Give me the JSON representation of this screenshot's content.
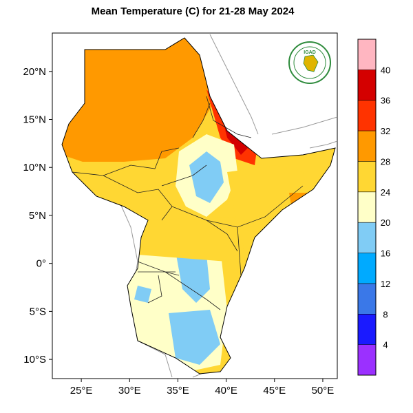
{
  "title": "Mean Temperature (C) for 21-28 May 2024",
  "logo": {
    "text": "IGAD",
    "icon": "igad-logo"
  },
  "map": {
    "lon_range": [
      22,
      51.5
    ],
    "lat_range": [
      -12,
      24
    ],
    "lon_ticks": [
      {
        "value": 25,
        "label": "25°E"
      },
      {
        "value": 30,
        "label": "30°E"
      },
      {
        "value": 35,
        "label": "35°E"
      },
      {
        "value": 40,
        "label": "40°E"
      },
      {
        "value": 45,
        "label": "45°E"
      },
      {
        "value": 50,
        "label": "50°E"
      }
    ],
    "lat_ticks": [
      {
        "value": 20,
        "label": "20°N"
      },
      {
        "value": 15,
        "label": "15°N"
      },
      {
        "value": 10,
        "label": "10°N"
      },
      {
        "value": 5,
        "label": "5°N"
      },
      {
        "value": 0,
        "label": "0°"
      },
      {
        "value": -5,
        "label": "5°S"
      },
      {
        "value": -10,
        "label": "10°S"
      }
    ]
  },
  "colorbar": {
    "bins": [
      {
        "color": "#9b30ff"
      },
      {
        "color": "#1a1aff"
      },
      {
        "color": "#3a78e8"
      },
      {
        "color": "#00aaff"
      },
      {
        "color": "#80ccf5"
      },
      {
        "color": "#ffffc8"
      },
      {
        "color": "#ffd733"
      },
      {
        "color": "#ff9900"
      },
      {
        "color": "#ff3300"
      },
      {
        "color": "#d40000"
      },
      {
        "color": "#ffb6c1"
      }
    ],
    "labels": [
      "4",
      "8",
      "12",
      "16",
      "20",
      "24",
      "28",
      "32",
      "36",
      "40"
    ]
  },
  "colors": {
    "c_16_20": "#80ccf5",
    "c_12_16": "#3a90e8",
    "c_20_24": "#ffffc8",
    "c_24_28": "#ffd733",
    "c_28_32": "#ff9900",
    "c_32_36": "#ff3300",
    "c_36_40": "#d40000"
  }
}
